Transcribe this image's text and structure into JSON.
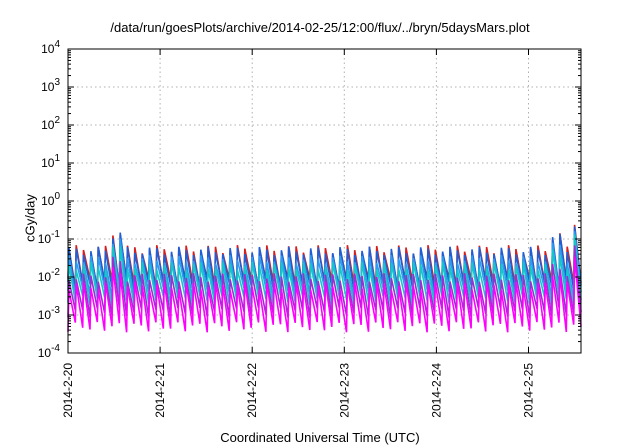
{
  "chart_data": {
    "type": "line",
    "title": "/data/run/goesPlots/archive/2014-02-25/12:00/flux/../bryn/5daysMars.plot",
    "xlabel": "Coordinated Universal Time (UTC)",
    "ylabel": "cGy/day",
    "yscale": "log",
    "ylim": [
      0.0001,
      10000
    ],
    "xlim_days": [
      0,
      5.57
    ],
    "x_ticks": [
      "2014-2-20",
      "2014-2-21",
      "2014-2-22",
      "2014-2-23",
      "2014-2-24",
      "2014-2-25"
    ],
    "y_ticks": [
      {
        "value": 0.0001,
        "base": "10",
        "exp": "-4"
      },
      {
        "value": 0.001,
        "base": "10",
        "exp": "-3"
      },
      {
        "value": 0.01,
        "base": "10",
        "exp": "-2"
      },
      {
        "value": 0.1,
        "base": "10",
        "exp": "-1"
      },
      {
        "value": 1,
        "base": "10",
        "exp": "0"
      },
      {
        "value": 10,
        "base": "10",
        "exp": "1"
      },
      {
        "value": 100,
        "base": "10",
        "exp": "2"
      },
      {
        "value": 1000,
        "base": "10",
        "exp": "3"
      },
      {
        "value": 10000,
        "base": "10",
        "exp": "4"
      }
    ],
    "grid": true,
    "legend": "none",
    "series": [
      {
        "color": "#d42020",
        "peak": 0.055,
        "trough": 0.007
      },
      {
        "color": "#1f5fd6",
        "peak": 0.05,
        "trough": 0.006
      },
      {
        "color": "#2a9df0",
        "peak": 0.03,
        "trough": 0.004
      },
      {
        "color": "#14c8c8",
        "peak": 0.02,
        "trough": 0.0025
      },
      {
        "color": "#9a30d0",
        "peak": 0.01,
        "trough": 0.0012
      },
      {
        "color": "#ff00ff",
        "peak": 0.006,
        "trough": 0.0005
      }
    ],
    "spikes": [
      {
        "at_day": 0.52,
        "peak": 0.15
      },
      {
        "at_day": 5.3,
        "peak": 0.12
      },
      {
        "at_day": 5.5,
        "peak": 0.3
      }
    ],
    "cycles_per_day": 12.6
  }
}
